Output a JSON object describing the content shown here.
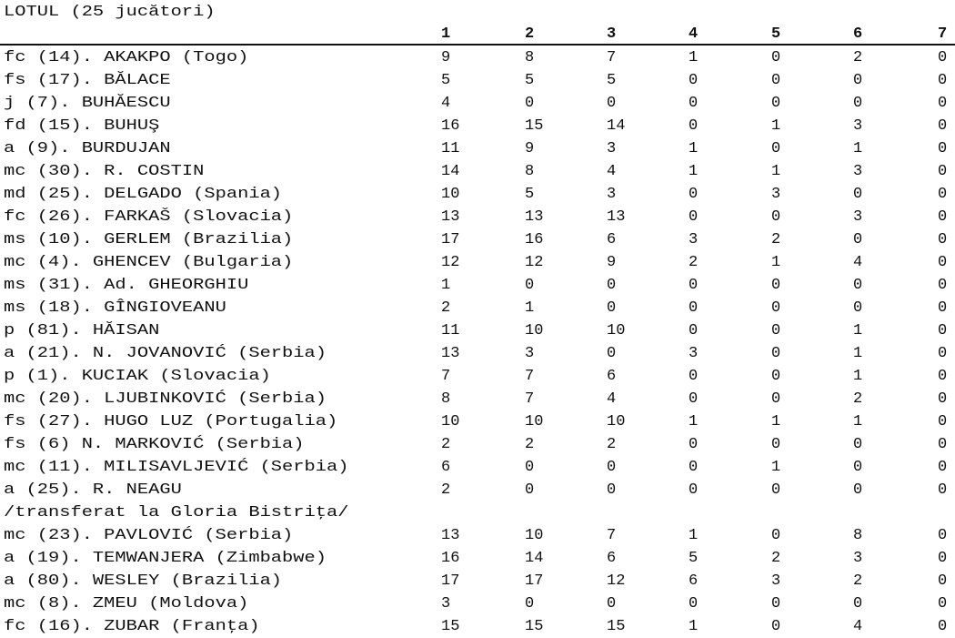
{
  "title": "LOTUL (25 jucători)",
  "columns": [
    "1",
    "2",
    "3",
    "4",
    "5",
    "6",
    "7"
  ],
  "rows": [
    {
      "name": "fc (14). AKAKPO (Togo)",
      "values": [
        "9",
        "8",
        "7",
        "1",
        "0",
        "2",
        "0"
      ]
    },
    {
      "name": "fs (17). BĂLACE",
      "values": [
        "5",
        "5",
        "5",
        "0",
        "0",
        "0",
        "0"
      ]
    },
    {
      "name": "j (7). BUHĂESCU",
      "values": [
        "4",
        "0",
        "0",
        "0",
        "0",
        "0",
        "0"
      ]
    },
    {
      "name": "fd (15). BUHUŞ",
      "values": [
        "16",
        "15",
        "14",
        "0",
        "1",
        "3",
        "0"
      ]
    },
    {
      "name": "a (9). BURDUJAN",
      "values": [
        "11",
        "9",
        "3",
        "1",
        "0",
        "1",
        "0"
      ]
    },
    {
      "name": "mc (30). R. COSTIN",
      "values": [
        "14",
        "8",
        "4",
        "1",
        "1",
        "3",
        "0"
      ]
    },
    {
      "name": "md (25). DELGADO (Spania)",
      "values": [
        "10",
        "5",
        "3",
        "0",
        "3",
        "0",
        "0"
      ]
    },
    {
      "name": "fc (26). FARKAŠ (Slovacia)",
      "values": [
        "13",
        "13",
        "13",
        "0",
        "0",
        "3",
        "0"
      ]
    },
    {
      "name": "ms (10). GERLEM (Brazilia)",
      "values": [
        "17",
        "16",
        "6",
        "3",
        "2",
        "0",
        "0"
      ]
    },
    {
      "name": "mc (4). GHENCEV (Bulgaria)",
      "values": [
        "12",
        "12",
        "9",
        "2",
        "1",
        "4",
        "0"
      ]
    },
    {
      "name": "ms (31). Ad. GHEORGHIU",
      "values": [
        "1",
        "0",
        "0",
        "0",
        "0",
        "0",
        "0"
      ]
    },
    {
      "name": "ms (18). GÎNGIOVEANU",
      "values": [
        "2",
        "1",
        "0",
        "0",
        "0",
        "0",
        "0"
      ]
    },
    {
      "name": "p (81). HĂISAN",
      "values": [
        "11",
        "10",
        "10",
        "0",
        "0",
        "1",
        "0"
      ]
    },
    {
      "name": "a (21). N. JOVANOVIĆ (Serbia)",
      "values": [
        "13",
        "3",
        "0",
        "3",
        "0",
        "1",
        "0"
      ]
    },
    {
      "name": "p (1). KUCIAK (Slovacia)",
      "values": [
        "7",
        "7",
        "6",
        "0",
        "0",
        "1",
        "0"
      ]
    },
    {
      "name": "mc (20). LJUBINKOVIĆ (Serbia)",
      "values": [
        "8",
        "7",
        "4",
        "0",
        "0",
        "2",
        "0"
      ]
    },
    {
      "name": "fs (27). HUGO LUZ (Portugalia)",
      "values": [
        "10",
        "10",
        "10",
        "1",
        "1",
        "1",
        "0"
      ]
    },
    {
      "name": "fs (6) N. MARKOVIĆ (Serbia)",
      "values": [
        "2",
        "2",
        "2",
        "0",
        "0",
        "0",
        "0"
      ]
    },
    {
      "name": "mc (11). MILISAVLJEVIĆ (Serbia)",
      "values": [
        "6",
        "0",
        "0",
        "0",
        "1",
        "0",
        "0"
      ]
    },
    {
      "name": "a (25). R. NEAGU",
      "values": [
        "2",
        "0",
        "0",
        "0",
        "0",
        "0",
        "0"
      ]
    },
    {
      "name": "/transferat la Gloria Bistriţa/",
      "values": []
    },
    {
      "name": "mc (23). PAVLOVIĆ (Serbia)",
      "values": [
        "13",
        "10",
        "7",
        "1",
        "0",
        "8",
        "0"
      ]
    },
    {
      "name": "a (19). TEMWANJERA (Zimbabwe)",
      "values": [
        "16",
        "14",
        "6",
        "5",
        "2",
        "3",
        "0"
      ]
    },
    {
      "name": "a (80). WESLEY (Brazilia)",
      "values": [
        "17",
        "17",
        "12",
        "6",
        "3",
        "2",
        "0"
      ]
    },
    {
      "name": "mc (8). ZMEU (Moldova)",
      "values": [
        "3",
        "0",
        "0",
        "0",
        "0",
        "0",
        "0"
      ]
    },
    {
      "name": "fc (16). ZUBAR (Franţa)",
      "values": [
        "15",
        "15",
        "15",
        "1",
        "0",
        "4",
        "0"
      ]
    }
  ]
}
